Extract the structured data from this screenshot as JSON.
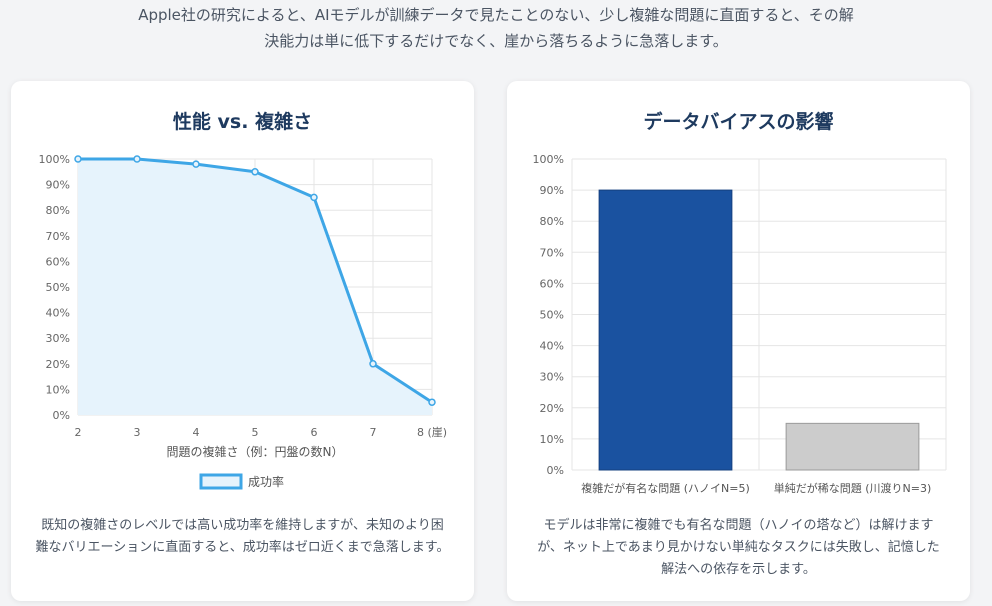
{
  "intro_text": [
    "Apple社の研究によると、AIモデルが訓練データで見たことのない、少し複雑な問題に直面すると、その解",
    "決能力は単に低下するだけでなく、崖から落ちるように急落します。"
  ],
  "left_card": {
    "title": "性能 vs. 複雑さ",
    "description": "既知の複雑さのレベルでは高い成功率を維持しますが、未知のより困難なバリエーションに直面すると、成功率はゼロ近くまで急落します。"
  },
  "right_card": {
    "title": "データバイアスの影響",
    "description": "モデルは非常に複雑でも有名な問題（ハノイの塔など）は解けますが、ネット上であまり見かけない単純なタスクには失敗し、記憶した解法への依存を示します。"
  },
  "chart_data": [
    {
      "type": "area",
      "x": [
        2,
        3,
        4,
        5,
        6,
        7,
        8
      ],
      "x_tick_labels": [
        "2",
        "3",
        "4",
        "5",
        "6",
        "7",
        "8 (崖)"
      ],
      "series": [
        {
          "name": "成功率",
          "values": [
            100,
            100,
            98,
            95,
            85,
            20,
            5
          ]
        }
      ],
      "xlabel": "問題の複雑さ（例：円盤の数N）",
      "ylabel": "",
      "ylim": [
        0,
        100
      ],
      "y_ticks": [
        "0%",
        "10%",
        "20%",
        "30%",
        "40%",
        "50%",
        "60%",
        "70%",
        "80%",
        "90%",
        "100%"
      ],
      "grid": true,
      "legend": "bottom",
      "colors": {
        "line": "#3ea6e6",
        "fill": "#e6f3fc"
      }
    },
    {
      "type": "bar",
      "categories": [
        "複雑だが有名な問題 (ハノイN=5)",
        "単純だが稀な問題 (川渡りN=3)"
      ],
      "values": [
        90,
        15
      ],
      "ylim": [
        0,
        100
      ],
      "y_ticks": [
        "0%",
        "10%",
        "20%",
        "30%",
        "40%",
        "50%",
        "60%",
        "70%",
        "80%",
        "90%",
        "100%"
      ],
      "grid": true,
      "colors": [
        "#1a52a0",
        "#cccccc"
      ]
    }
  ]
}
